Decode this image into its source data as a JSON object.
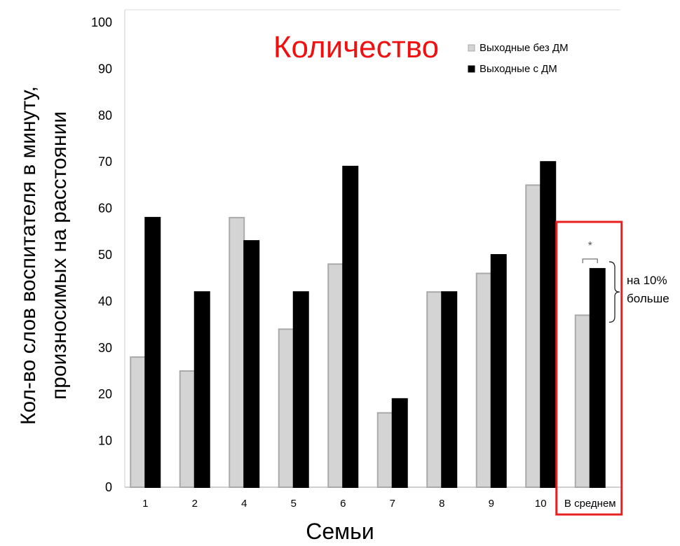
{
  "chart_data": {
    "type": "bar",
    "title": "Количество",
    "title_color": "#ee1111",
    "xlabel": "Семьи",
    "ylabel_lines": [
      "Кол-во слов воспитателя в минуту,",
      "произносимых на расстоянии"
    ],
    "categories": [
      "1",
      "2",
      "4",
      "5",
      "6",
      "7",
      "8",
      "9",
      "10",
      "В среднем"
    ],
    "series": [
      {
        "name": "Выходные без ДМ",
        "color": "#d4d4d4",
        "stroke": "#a9a9a9",
        "values": [
          28,
          25,
          58,
          34,
          48,
          16,
          42,
          46,
          65,
          37
        ]
      },
      {
        "name": "Выходные с ДМ",
        "color": "#000000",
        "stroke": "#000000",
        "values": [
          58,
          42,
          53,
          42,
          69,
          19,
          42,
          50,
          70,
          47
        ]
      }
    ],
    "ylim": [
      0,
      100
    ],
    "yticks": [
      0,
      10,
      20,
      30,
      40,
      50,
      60,
      70,
      80,
      90,
      100
    ],
    "grid": false,
    "legend_position": "top-right",
    "highlight_category": "В среднем",
    "highlight_color": "#e82020",
    "significance_marker": "*",
    "annotation": [
      "на 10%",
      "больше"
    ]
  }
}
